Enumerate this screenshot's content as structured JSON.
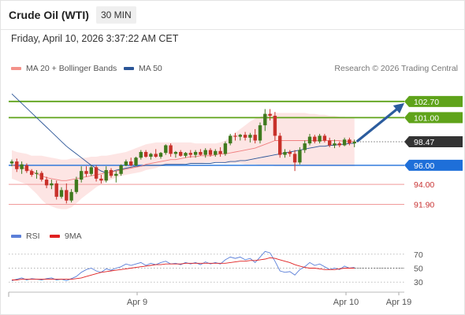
{
  "header": {
    "title": "Crude Oil (WTI)",
    "interval": "30 MIN",
    "datetime": "Friday, April 10, 2026 3:37:22 AM CET"
  },
  "legend": {
    "items": [
      {
        "label": "MA 20 + Bollinger Bands",
        "color": "#f4928a"
      },
      {
        "label": "MA 50",
        "color": "#2b5597"
      }
    ],
    "copyright": "Research © 2026 Trading Central"
  },
  "rsi_legend": {
    "items": [
      {
        "label": "RSI",
        "color": "#5b7fd8"
      },
      {
        "label": "9MA",
        "color": "#e02020"
      }
    ]
  },
  "colors": {
    "up": "#3f7a1e",
    "down": "#c8312a",
    "resistance": "#5fa31a",
    "support": "#1e6fd9",
    "pivot": "#f09a9a",
    "current": "#333333",
    "arrow": "#2b5c9e",
    "band": "#fde1df"
  },
  "chart_data": [
    {
      "type": "candlestick",
      "price_range": [
        89.3,
        105.0
      ],
      "x_ticks": [
        "Apr 9",
        "Apr 10",
        "Apr 19"
      ],
      "levels": [
        {
          "value": 102.7,
          "label": "102.70",
          "kind": "resistance"
        },
        {
          "value": 101.0,
          "label": "101.00",
          "kind": "resistance"
        },
        {
          "value": 98.47,
          "label": "98.47",
          "kind": "current"
        },
        {
          "value": 96.0,
          "label": "96.00",
          "kind": "support"
        },
        {
          "value": 94.0,
          "label": "94.00",
          "kind": "pivot"
        },
        {
          "value": 91.9,
          "label": "91.90",
          "kind": "pivot"
        }
      ],
      "candles": [
        [
          96.2,
          96.6,
          95.9,
          96.4
        ],
        [
          96.4,
          96.7,
          95.3,
          95.6
        ],
        [
          95.6,
          96.4,
          95.1,
          96.1
        ],
        [
          96.0,
          96.2,
          95.2,
          95.4
        ],
        [
          95.4,
          95.6,
          94.8,
          95.0
        ],
        [
          95.1,
          95.5,
          94.6,
          95.2
        ],
        [
          95.2,
          95.4,
          94.3,
          94.5
        ],
        [
          94.5,
          94.8,
          93.6,
          93.9
        ],
        [
          93.9,
          94.5,
          93.5,
          94.1
        ],
        [
          94.1,
          94.4,
          92.4,
          92.7
        ],
        [
          92.7,
          93.7,
          92.5,
          93.4
        ],
        [
          93.4,
          94.1,
          92.0,
          92.3
        ],
        [
          92.3,
          93.5,
          92.1,
          93.2
        ],
        [
          93.2,
          94.8,
          93.0,
          94.5
        ],
        [
          94.5,
          95.9,
          94.2,
          95.4
        ],
        [
          95.4,
          95.9,
          94.8,
          95.1
        ],
        [
          95.1,
          96.0,
          94.9,
          95.8
        ],
        [
          95.8,
          96.0,
          94.3,
          94.6
        ],
        [
          94.6,
          95.0,
          94.1,
          94.4
        ],
        [
          94.4,
          95.9,
          94.2,
          95.5
        ],
        [
          95.5,
          95.7,
          94.7,
          94.9
        ],
        [
          94.9,
          95.4,
          94.2,
          95.1
        ],
        [
          95.1,
          96.1,
          94.9,
          96.0
        ],
        [
          96.0,
          96.6,
          95.9,
          96.4
        ],
        [
          96.4,
          96.8,
          95.9,
          96.0
        ],
        [
          96.0,
          96.9,
          95.9,
          96.8
        ],
        [
          96.8,
          97.6,
          96.6,
          97.4
        ],
        [
          97.4,
          97.6,
          96.8,
          96.9
        ],
        [
          96.9,
          97.3,
          96.6,
          97.2
        ],
        [
          97.2,
          97.7,
          96.8,
          96.9
        ],
        [
          96.9,
          97.4,
          96.7,
          97.3
        ],
        [
          97.3,
          98.2,
          97.1,
          98.1
        ],
        [
          98.1,
          98.3,
          96.9,
          97.2
        ],
        [
          97.2,
          97.5,
          96.8,
          97.4
        ],
        [
          97.4,
          97.6,
          96.9,
          97.0
        ],
        [
          97.0,
          97.4,
          96.8,
          97.3
        ],
        [
          97.3,
          97.6,
          96.8,
          97.1
        ],
        [
          97.1,
          97.6,
          96.8,
          97.4
        ],
        [
          97.4,
          97.7,
          97.0,
          97.1
        ],
        [
          97.1,
          97.8,
          96.8,
          97.6
        ],
        [
          97.6,
          97.8,
          96.9,
          97.1
        ],
        [
          97.1,
          97.7,
          96.9,
          97.5
        ],
        [
          97.5,
          97.9,
          96.9,
          97.2
        ],
        [
          97.2,
          98.5,
          97.0,
          98.3
        ],
        [
          98.3,
          99.3,
          98.1,
          99.1
        ],
        [
          99.1,
          99.4,
          98.6,
          99.0
        ],
        [
          99.0,
          99.3,
          98.6,
          99.2
        ],
        [
          99.2,
          99.5,
          98.6,
          98.9
        ],
        [
          98.9,
          99.4,
          98.4,
          99.2
        ],
        [
          99.2,
          99.8,
          98.3,
          98.6
        ],
        [
          98.6,
          100.5,
          98.3,
          100.2
        ],
        [
          100.2,
          101.9,
          99.6,
          101.4
        ],
        [
          101.4,
          101.9,
          100.7,
          101.2
        ],
        [
          101.2,
          101.6,
          98.6,
          99.1
        ],
        [
          99.1,
          99.4,
          96.8,
          97.1
        ],
        [
          97.1,
          97.7,
          96.8,
          97.4
        ],
        [
          97.4,
          97.6,
          96.9,
          97.2
        ],
        [
          97.2,
          97.6,
          95.4,
          96.3
        ],
        [
          96.3,
          97.9,
          96.1,
          97.6
        ],
        [
          97.6,
          98.6,
          97.3,
          98.3
        ],
        [
          98.3,
          99.3,
          98.1,
          99.0
        ],
        [
          99.0,
          99.2,
          98.3,
          98.5
        ],
        [
          98.5,
          99.3,
          98.3,
          99.1
        ],
        [
          99.1,
          99.3,
          98.4,
          98.6
        ],
        [
          98.6,
          98.9,
          97.9,
          98.1
        ],
        [
          98.1,
          98.7,
          97.8,
          98.3
        ],
        [
          98.3,
          98.5,
          97.9,
          98.1
        ],
        [
          98.1,
          98.9,
          98.0,
          98.7
        ],
        [
          98.7,
          98.9,
          98.1,
          98.3
        ],
        [
          98.3,
          98.7,
          97.9,
          98.47
        ]
      ],
      "ma20": [
        96.0,
        95.9,
        95.8,
        95.6,
        95.4,
        95.1,
        94.9,
        94.7,
        94.6,
        94.5,
        94.4,
        94.4,
        94.5,
        94.6,
        94.7,
        94.8,
        94.9,
        95.0,
        95.1,
        95.2,
        95.3,
        95.4,
        95.5,
        95.6,
        95.7,
        95.8,
        95.9,
        96.1,
        96.2,
        96.3,
        96.4,
        96.5,
        96.6,
        96.6,
        96.7,
        96.8,
        96.9,
        96.9,
        97.0,
        97.0,
        97.0,
        97.1,
        97.2,
        97.2,
        97.3,
        97.4,
        97.5,
        97.6,
        97.7,
        97.8,
        98.0,
        98.2,
        98.4,
        98.6,
        98.6,
        98.6,
        98.6,
        98.6,
        98.6,
        98.6,
        98.6,
        98.6,
        98.6,
        98.6,
        98.6,
        98.6,
        98.6,
        98.5,
        98.5,
        98.5
      ],
      "bb_upper": [
        97.6,
        97.4,
        97.3,
        97.2,
        97.0,
        97.0,
        97.0,
        96.9,
        96.8,
        96.7,
        96.6,
        96.6,
        96.7,
        96.7,
        96.8,
        96.8,
        96.9,
        96.9,
        97.0,
        97.0,
        97.1,
        97.2,
        97.3,
        97.4,
        97.6,
        97.8,
        98.0,
        98.2,
        98.3,
        98.4,
        98.4,
        98.4,
        98.4,
        98.4,
        98.4,
        98.4,
        98.4,
        98.3,
        98.3,
        98.3,
        98.3,
        98.3,
        98.4,
        98.6,
        99.0,
        99.4,
        99.8,
        100.2,
        100.6,
        100.9,
        101.1,
        101.3,
        101.4,
        101.5,
        101.5,
        101.5,
        101.5,
        101.5,
        101.5,
        101.5,
        101.4,
        101.4,
        101.3,
        101.3,
        101.2,
        101.2,
        101.1,
        101.1,
        101.0,
        101.0
      ],
      "bb_lower": [
        94.6,
        94.4,
        94.2,
        94.0,
        93.5,
        93.0,
        92.4,
        91.9,
        91.7,
        91.5,
        91.4,
        91.4,
        91.6,
        92.0,
        92.5,
        92.9,
        93.3,
        93.7,
        94.0,
        94.3,
        94.5,
        94.7,
        94.9,
        95.0,
        95.1,
        95.2,
        95.3,
        95.5,
        95.6,
        95.7,
        95.9,
        96.0,
        96.1,
        96.1,
        96.1,
        96.2,
        96.2,
        96.2,
        96.2,
        96.3,
        96.3,
        96.3,
        96.3,
        96.2,
        96.2,
        96.2,
        96.2,
        96.1,
        96.1,
        96.1,
        96.0,
        96.0,
        96.0,
        95.9,
        95.9,
        95.9,
        95.9,
        95.9,
        95.9,
        95.9,
        95.9,
        95.9,
        95.9,
        95.9,
        95.9,
        95.9,
        95.9,
        95.9,
        95.9,
        95.9
      ],
      "ma50": [
        103.5,
        103.0,
        102.5,
        102.0,
        101.5,
        101.0,
        100.5,
        100.0,
        99.5,
        99.0,
        98.5,
        98.0,
        97.6,
        97.2,
        96.8,
        96.4,
        96.0,
        95.7,
        95.4,
        95.2,
        95.3,
        95.5,
        95.6,
        95.7,
        95.8,
        95.9,
        95.9,
        96.0,
        96.0,
        96.0,
        96.0,
        96.1,
        96.1,
        96.1,
        96.1,
        96.1,
        96.2,
        96.2,
        96.2,
        96.2,
        96.2,
        96.3,
        96.3,
        96.3,
        96.4,
        96.4,
        96.5,
        96.5,
        96.6,
        96.7,
        96.8,
        96.9,
        97.0,
        97.1,
        97.2,
        97.3,
        97.4,
        97.5,
        97.6,
        97.7,
        97.8,
        97.9,
        98.0,
        98.0,
        98.1,
        98.1,
        98.2,
        98.2,
        98.3,
        98.3
      ]
    },
    {
      "type": "line",
      "y_ticks": [
        70,
        50,
        30
      ],
      "ylim": [
        20,
        80
      ],
      "series": [
        {
          "name": "RSI",
          "values": [
            32,
            34,
            36,
            33,
            35,
            34,
            33,
            35,
            36,
            33,
            34,
            32,
            35,
            38,
            44,
            48,
            50,
            46,
            44,
            49,
            47,
            50,
            52,
            56,
            54,
            56,
            58,
            54,
            57,
            55,
            58,
            60,
            56,
            57,
            55,
            58,
            56,
            58,
            55,
            59,
            56,
            58,
            56,
            62,
            66,
            64,
            66,
            62,
            64,
            58,
            66,
            74,
            72,
            60,
            46,
            44,
            45,
            40,
            48,
            52,
            58,
            54,
            56,
            52,
            48,
            50,
            48,
            53,
            50,
            51
          ]
        },
        {
          "name": "9MA",
          "values": [
            33,
            33,
            34,
            34,
            34,
            34,
            34,
            34,
            34,
            34,
            34,
            34,
            34,
            35,
            36,
            38,
            40,
            42,
            44,
            45,
            46,
            47,
            48,
            49,
            50,
            51,
            52,
            53,
            54,
            55,
            55,
            56,
            56,
            56,
            56,
            57,
            57,
            57,
            57,
            57,
            57,
            57,
            57,
            57,
            58,
            59,
            60,
            60,
            61,
            61,
            62,
            63,
            65,
            64,
            62,
            60,
            58,
            55,
            53,
            51,
            50,
            50,
            49,
            48,
            48,
            48,
            49,
            50,
            50,
            50
          ]
        }
      ]
    }
  ]
}
